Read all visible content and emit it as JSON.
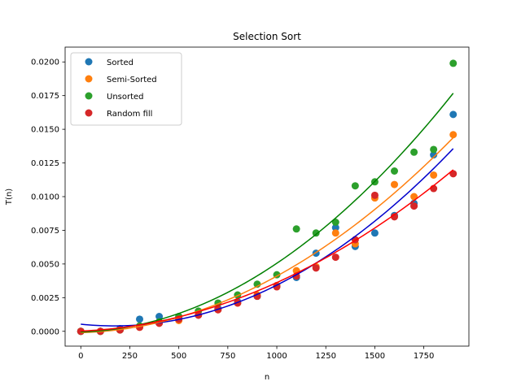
{
  "chart_data": {
    "type": "scatter",
    "title": "Selection Sort",
    "xlabel": "n",
    "ylabel": "T(n)",
    "xlim": [
      -80,
      1980
    ],
    "ylim": [
      -0.0011,
      0.0211
    ],
    "x_ticks": [
      0,
      250,
      500,
      750,
      1000,
      1250,
      1500,
      1750
    ],
    "x_tick_labels": [
      "0",
      "250",
      "500",
      "750",
      "1000",
      "1250",
      "1500",
      "1750"
    ],
    "y_ticks": [
      0,
      0.0025,
      0.005,
      0.0075,
      0.01,
      0.0125,
      0.015,
      0.0175,
      0.02
    ],
    "y_tick_labels": [
      "0.0000",
      "0.0025",
      "0.0050",
      "0.0075",
      "0.0100",
      "0.0125",
      "0.0150",
      "0.0175",
      "0.0200"
    ],
    "grid": false,
    "legend_position": "top-left",
    "series": [
      {
        "name": "Sorted",
        "color": "#1f77b4",
        "fit_color": "#0000cc",
        "x": [
          0,
          100,
          200,
          300,
          400,
          500,
          600,
          700,
          800,
          900,
          1000,
          1100,
          1200,
          1300,
          1400,
          1500,
          1600,
          1700,
          1800,
          1900
        ],
        "y": [
          0.0,
          0.0,
          0.0002,
          0.0009,
          0.0011,
          0.001,
          0.0012,
          0.0017,
          0.0022,
          0.0026,
          0.0034,
          0.004,
          0.0058,
          0.0077,
          0.0063,
          0.0073,
          0.0086,
          0.0095,
          0.0131,
          0.0161
        ],
        "fit": [
          0.00053,
          -1.5e-06,
          4.4e-09
        ]
      },
      {
        "name": "Semi-Sorted",
        "color": "#ff7f0e",
        "fit_color": "#ff7f0e",
        "x": [
          0,
          100,
          200,
          300,
          400,
          500,
          600,
          700,
          800,
          900,
          1000,
          1100,
          1200,
          1300,
          1400,
          1500,
          1600,
          1700,
          1800,
          1900
        ],
        "y": [
          0.0,
          0.0,
          0.0001,
          0.0003,
          0.0006,
          0.0008,
          0.0012,
          0.0016,
          0.0021,
          0.0027,
          0.0034,
          0.0045,
          0.0048,
          0.0073,
          0.0065,
          0.0099,
          0.0109,
          0.01,
          0.0116,
          0.0146
        ],
        "fit": [
          -0.0001,
          4e-07,
          3.8e-09
        ]
      },
      {
        "name": "Unsorted",
        "color": "#2ca02c",
        "fit_color": "#008000",
        "x": [
          0,
          100,
          200,
          300,
          400,
          500,
          600,
          700,
          800,
          900,
          1000,
          1100,
          1200,
          1300,
          1400,
          1500,
          1600,
          1700,
          1800,
          1900
        ],
        "y": [
          0.0,
          0.0,
          0.0001,
          0.0004,
          0.0007,
          0.0011,
          0.0015,
          0.0021,
          0.0027,
          0.0035,
          0.0042,
          0.0076,
          0.0073,
          0.0081,
          0.0108,
          0.0111,
          0.0119,
          0.0133,
          0.0135,
          0.0199
        ],
        "fit": [
          -5e-05,
          4e-07,
          4.7e-09
        ]
      },
      {
        "name": "Random fill",
        "color": "#d62728",
        "fit_color": "#ff0000",
        "x": [
          0,
          100,
          200,
          300,
          400,
          500,
          600,
          700,
          800,
          900,
          1000,
          1100,
          1200,
          1300,
          1400,
          1500,
          1600,
          1700,
          1800,
          1900
        ],
        "y": [
          0.0,
          0.0,
          0.0001,
          0.0003,
          0.0006,
          0.0009,
          0.0012,
          0.0016,
          0.0021,
          0.0026,
          0.0033,
          0.0041,
          0.0047,
          0.0055,
          0.0068,
          0.0101,
          0.0085,
          0.0093,
          0.0106,
          0.0117
        ],
        "fit": [
          2e-05,
          6e-07,
          3e-09
        ]
      }
    ]
  }
}
